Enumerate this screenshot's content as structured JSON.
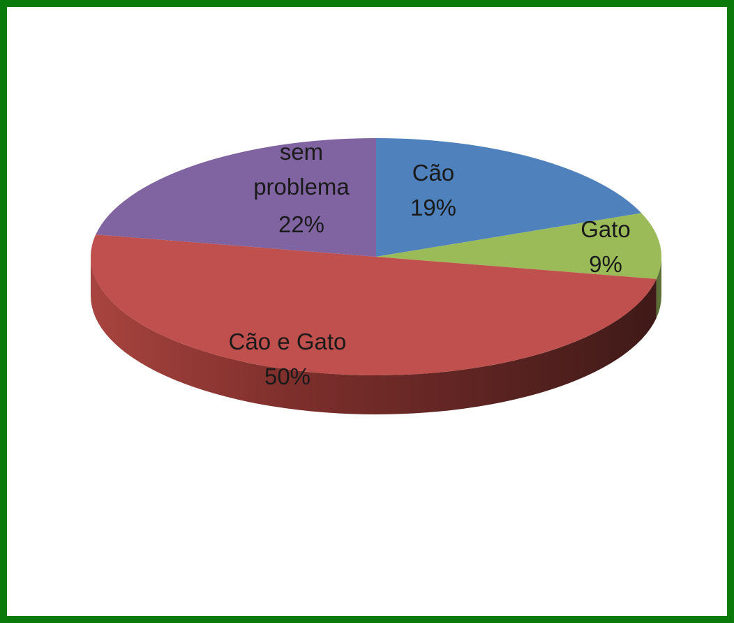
{
  "chart_data": {
    "type": "pie",
    "title": "",
    "style": "3d-tilted",
    "legend": "none",
    "slices": [
      {
        "label": "Cão",
        "value": 19,
        "percent_label": "19%",
        "color": "#4f81bd"
      },
      {
        "label": "Gato",
        "value": 9,
        "percent_label": "9%",
        "color": "#9bbb59"
      },
      {
        "label": "Cão e Gato",
        "value": 50,
        "percent_label": "50%",
        "color": "#c0504d"
      },
      {
        "label": "sem problema",
        "value": 22,
        "percent_label": "22%",
        "color": "#8064a2"
      }
    ]
  },
  "frame": {
    "border_color": "#0a7a0a"
  }
}
